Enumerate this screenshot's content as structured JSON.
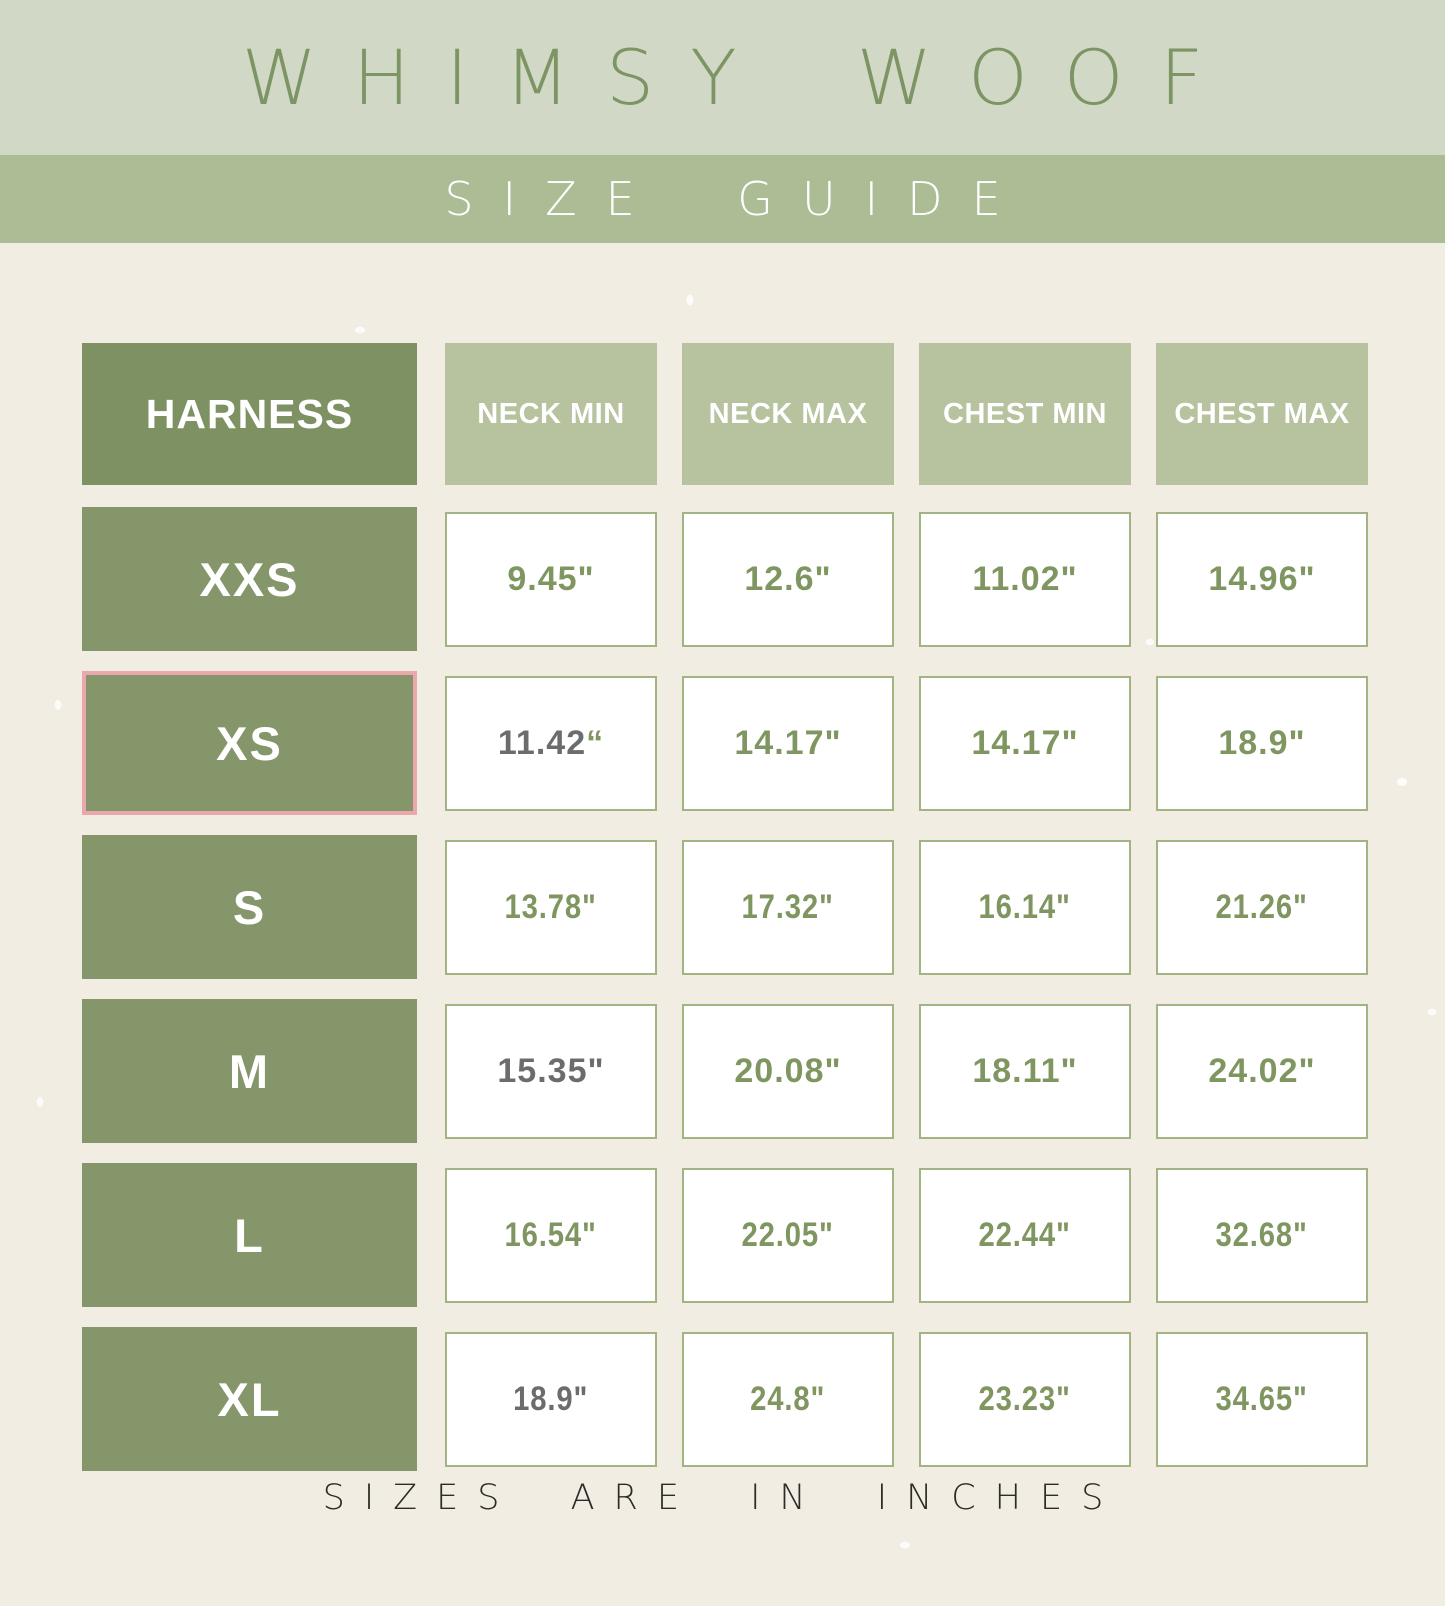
{
  "brand": {
    "title": "WHIMSY WOOF",
    "subtitle": "SIZE GUIDE"
  },
  "table": {
    "corner_label": "HARNESS",
    "columns": [
      "NECK MIN",
      "NECK MAX",
      "CHEST MIN",
      "CHEST MAX"
    ],
    "rows": [
      {
        "size": "XXS",
        "highlighted": false,
        "condensed": false,
        "cells": [
          {
            "value": "9.45",
            "quote": "\"",
            "value_muted": false,
            "quote_muted": false
          },
          {
            "value": "12.6",
            "quote": "\"",
            "value_muted": false,
            "quote_muted": false
          },
          {
            "value": "11.02",
            "quote": "\"",
            "value_muted": false,
            "quote_muted": false
          },
          {
            "value": "14.96",
            "quote": "\"",
            "value_muted": false,
            "quote_muted": false
          }
        ]
      },
      {
        "size": "XS",
        "highlighted": true,
        "condensed": false,
        "cells": [
          {
            "value": "11.42",
            "quote": "“",
            "value_muted": true,
            "quote_muted": false
          },
          {
            "value": "14.17",
            "quote": "\"",
            "value_muted": false,
            "quote_muted": false
          },
          {
            "value": "14.17",
            "quote": "\"",
            "value_muted": false,
            "quote_muted": false
          },
          {
            "value": "18.9",
            "quote": "\"",
            "value_muted": false,
            "quote_muted": false
          }
        ]
      },
      {
        "size": "S",
        "highlighted": false,
        "condensed": true,
        "cells": [
          {
            "value": "13.78",
            "quote": "\"",
            "value_muted": false,
            "quote_muted": false
          },
          {
            "value": "17.32",
            "quote": "\"",
            "value_muted": false,
            "quote_muted": false
          },
          {
            "value": "16.14",
            "quote": "\"",
            "value_muted": false,
            "quote_muted": false
          },
          {
            "value": "21.26",
            "quote": "\"",
            "value_muted": false,
            "quote_muted": false
          }
        ]
      },
      {
        "size": "M",
        "highlighted": false,
        "condensed": false,
        "cells": [
          {
            "value": "15.35",
            "quote": "\"",
            "value_muted": true,
            "quote_muted": true
          },
          {
            "value": "20.08",
            "quote": "\"",
            "value_muted": false,
            "quote_muted": false
          },
          {
            "value": "18.11",
            "quote": "\"",
            "value_muted": false,
            "quote_muted": false
          },
          {
            "value": "24.02",
            "quote": "\"",
            "value_muted": false,
            "quote_muted": false
          }
        ]
      },
      {
        "size": "L",
        "highlighted": false,
        "condensed": true,
        "cells": [
          {
            "value": "16.54",
            "quote": "\"",
            "value_muted": false,
            "quote_muted": false
          },
          {
            "value": "22.05",
            "quote": "\"",
            "value_muted": false,
            "quote_muted": false
          },
          {
            "value": "22.44",
            "quote": "\"",
            "value_muted": false,
            "quote_muted": false
          },
          {
            "value": "32.68",
            "quote": "\"",
            "value_muted": false,
            "quote_muted": false
          }
        ]
      },
      {
        "size": "XL",
        "highlighted": false,
        "condensed": true,
        "cells": [
          {
            "value": "18.9",
            "quote": "\"",
            "value_muted": true,
            "quote_muted": true
          },
          {
            "value": "24.8",
            "quote": "\"",
            "value_muted": false,
            "quote_muted": false
          },
          {
            "value": "23.23",
            "quote": "\"",
            "value_muted": false,
            "quote_muted": false
          },
          {
            "value": "34.65",
            "quote": "\"",
            "value_muted": false,
            "quote_muted": false
          }
        ]
      }
    ]
  },
  "footer": {
    "note": "SIZES ARE IN INCHES"
  },
  "colors": {
    "banner_top_bg": "#d2d8c6",
    "banner_top_text": "#7d9464",
    "banner_sub_bg": "#acbc94",
    "page_bg": "#f2ede3",
    "dark_green_box": "#7d9162",
    "row_label_box": "#85966b",
    "column_header_box": "#b7c29e",
    "cell_border": "#a3b483",
    "value_green": "#809661",
    "value_gray": "#6b6c6e",
    "highlight_pink_border": "#eaa8ae",
    "footer_text": "#2d2b27"
  },
  "chart_data": {
    "type": "table",
    "title": "WHIMSY WOOF",
    "subtitle": "SIZE GUIDE",
    "units": "inches",
    "columns": [
      "HARNESS",
      "NECK MIN",
      "NECK MAX",
      "CHEST MIN",
      "CHEST MAX"
    ],
    "rows": [
      [
        "XXS",
        9.45,
        12.6,
        11.02,
        14.96
      ],
      [
        "XS",
        11.42,
        14.17,
        14.17,
        18.9
      ],
      [
        "S",
        13.78,
        17.32,
        16.14,
        21.26
      ],
      [
        "M",
        15.35,
        20.08,
        18.11,
        24.02
      ],
      [
        "L",
        16.54,
        22.05,
        22.44,
        32.68
      ],
      [
        "XL",
        18.9,
        24.8,
        23.23,
        34.65
      ]
    ],
    "note": "SIZES ARE IN INCHES",
    "highlighted_row": "XS"
  }
}
